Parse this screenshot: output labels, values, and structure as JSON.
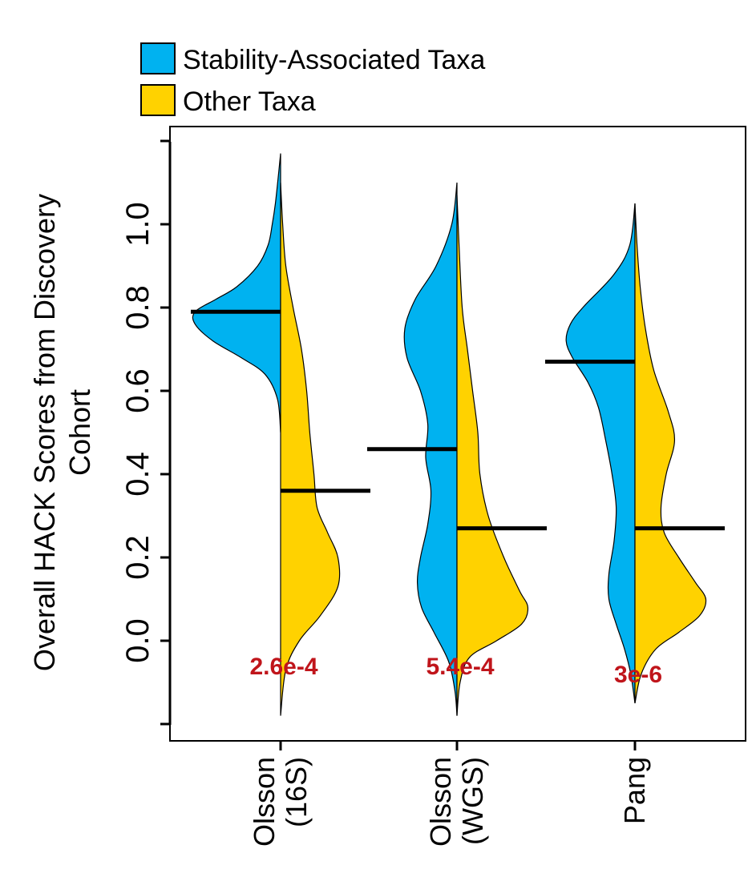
{
  "chart_data": {
    "type": "violin",
    "ylabel_lines": [
      "Overall HACK Scores from Discovery",
      "Cohort"
    ],
    "ylim": [
      -0.2,
      1.2
    ],
    "yticks": [
      "0.0",
      "0.2",
      "0.4",
      "0.6",
      "0.8",
      "1.0"
    ],
    "legend": {
      "placement": "top-left",
      "entries": [
        {
          "label": "Stability-Associated Taxa",
          "color": "#00b2f0"
        },
        {
          "label": "Other Taxa",
          "color": "#ffd200"
        }
      ]
    },
    "groups": [
      {
        "label_lines": [
          "Olsson",
          "(16S)"
        ],
        "p_value": "2.6e-4",
        "stability": {
          "median": 0.79,
          "density": [
            [
              1.17,
              0
            ],
            [
              1.12,
              0.02
            ],
            [
              1.05,
              0.05
            ],
            [
              1.0,
              0.08
            ],
            [
              0.95,
              0.12
            ],
            [
              0.9,
              0.22
            ],
            [
              0.85,
              0.42
            ],
            [
              0.82,
              0.62
            ],
            [
              0.79,
              0.82
            ],
            [
              0.76,
              0.82
            ],
            [
              0.72,
              0.65
            ],
            [
              0.68,
              0.38
            ],
            [
              0.64,
              0.15
            ],
            [
              0.58,
              0.03
            ],
            [
              0.5,
              0
            ]
          ]
        },
        "other": {
          "median": 0.36,
          "density": [
            [
              1.1,
              0
            ],
            [
              1.0,
              0.02
            ],
            [
              0.9,
              0.05
            ],
            [
              0.8,
              0.12
            ],
            [
              0.7,
              0.2
            ],
            [
              0.6,
              0.25
            ],
            [
              0.5,
              0.28
            ],
            [
              0.4,
              0.32
            ],
            [
              0.32,
              0.35
            ],
            [
              0.26,
              0.45
            ],
            [
              0.2,
              0.55
            ],
            [
              0.13,
              0.55
            ],
            [
              0.06,
              0.38
            ],
            [
              0.0,
              0.18
            ],
            [
              -0.07,
              0.05
            ],
            [
              -0.18,
              0
            ]
          ]
        }
      },
      {
        "label_lines": [
          "Olsson",
          "(WGS)"
        ],
        "p_value": "5.4e-4",
        "stability": {
          "median": 0.46,
          "density": [
            [
              1.1,
              0
            ],
            [
              1.0,
              0.05
            ],
            [
              0.9,
              0.2
            ],
            [
              0.82,
              0.4
            ],
            [
              0.75,
              0.5
            ],
            [
              0.68,
              0.48
            ],
            [
              0.6,
              0.35
            ],
            [
              0.52,
              0.28
            ],
            [
              0.44,
              0.3
            ],
            [
              0.36,
              0.25
            ],
            [
              0.28,
              0.28
            ],
            [
              0.2,
              0.35
            ],
            [
              0.14,
              0.38
            ],
            [
              0.08,
              0.34
            ],
            [
              0.02,
              0.22
            ],
            [
              -0.05,
              0.08
            ],
            [
              -0.12,
              0.02
            ],
            [
              -0.18,
              0
            ]
          ]
        },
        "other": {
          "median": 0.27,
          "density": [
            [
              1.07,
              0
            ],
            [
              0.95,
              0.02
            ],
            [
              0.8,
              0.05
            ],
            [
              0.7,
              0.1
            ],
            [
              0.6,
              0.15
            ],
            [
              0.5,
              0.2
            ],
            [
              0.4,
              0.22
            ],
            [
              0.3,
              0.3
            ],
            [
              0.2,
              0.45
            ],
            [
              0.12,
              0.6
            ],
            [
              0.08,
              0.68
            ],
            [
              0.04,
              0.62
            ],
            [
              0.0,
              0.38
            ],
            [
              -0.04,
              0.12
            ],
            [
              -0.1,
              0.03
            ],
            [
              -0.18,
              0
            ]
          ]
        }
      },
      {
        "label_lines": [
          "Pang"
        ],
        "p_value": "3e-6",
        "stability": {
          "median": 0.67,
          "density": [
            [
              1.05,
              0
            ],
            [
              0.95,
              0.05
            ],
            [
              0.88,
              0.2
            ],
            [
              0.8,
              0.5
            ],
            [
              0.76,
              0.62
            ],
            [
              0.72,
              0.66
            ],
            [
              0.68,
              0.6
            ],
            [
              0.62,
              0.45
            ],
            [
              0.56,
              0.35
            ],
            [
              0.48,
              0.28
            ],
            [
              0.4,
              0.22
            ],
            [
              0.32,
              0.18
            ],
            [
              0.24,
              0.2
            ],
            [
              0.16,
              0.25
            ],
            [
              0.1,
              0.25
            ],
            [
              0.04,
              0.18
            ],
            [
              -0.02,
              0.1
            ],
            [
              -0.08,
              0.04
            ],
            [
              -0.15,
              0
            ]
          ]
        },
        "other": {
          "median": 0.27,
          "density": [
            [
              1.05,
              0
            ],
            [
              0.95,
              0.02
            ],
            [
              0.85,
              0.05
            ],
            [
              0.75,
              0.1
            ],
            [
              0.65,
              0.18
            ],
            [
              0.55,
              0.32
            ],
            [
              0.48,
              0.38
            ],
            [
              0.4,
              0.3
            ],
            [
              0.32,
              0.25
            ],
            [
              0.26,
              0.28
            ],
            [
              0.2,
              0.42
            ],
            [
              0.14,
              0.58
            ],
            [
              0.1,
              0.68
            ],
            [
              0.06,
              0.62
            ],
            [
              0.02,
              0.42
            ],
            [
              -0.02,
              0.2
            ],
            [
              -0.08,
              0.06
            ],
            [
              -0.15,
              0
            ]
          ]
        }
      }
    ]
  }
}
